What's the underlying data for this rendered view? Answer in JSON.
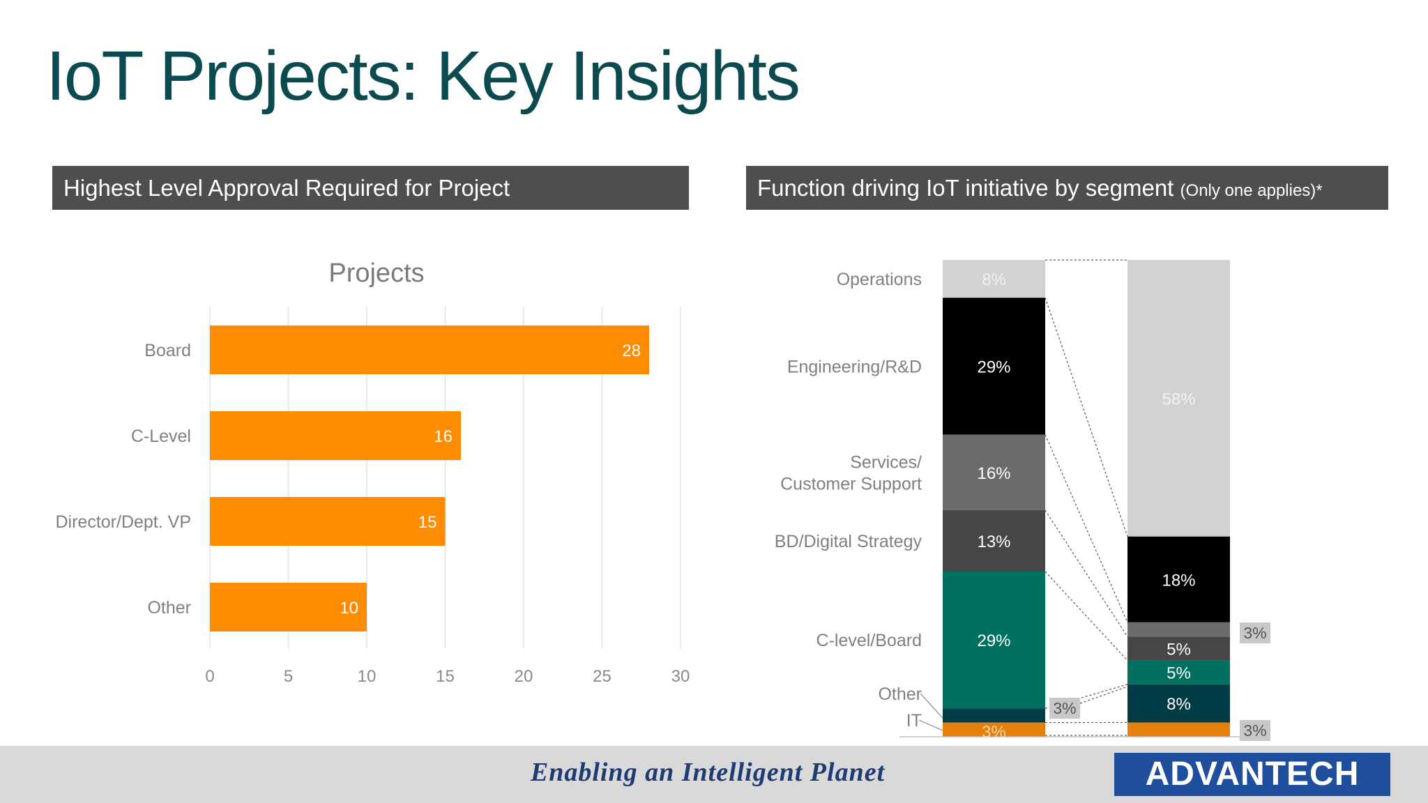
{
  "title": "IoT Projects: Key Insights",
  "left_panel": {
    "header": "Highest Level Approval Required for Project"
  },
  "right_panel": {
    "header": "Function driving IoT initiative by segment",
    "header_note": "(Only one applies)*"
  },
  "colors": {
    "title": "#0b4a4e",
    "header_bg": "#4f4d4f",
    "bar": "#ff8c00",
    "operations": "#d2d1d3",
    "engineering": "#000000",
    "services": "#6b6a6c",
    "bd_digital": "#464547",
    "c_level": "#007061",
    "other": "#003c46",
    "it": "#e57f0a",
    "footer_bg": "#d9d9d9",
    "logo_bg": "#1f4e9c"
  },
  "chart_data": [
    {
      "type": "bar",
      "orientation": "horizontal",
      "title": "Projects",
      "categories": [
        "Board",
        "C-Level",
        "Director/Dept. VP",
        "Other"
      ],
      "values": [
        28,
        16,
        15,
        10
      ],
      "xlim": [
        0,
        30
      ],
      "xticks": [
        0,
        5,
        10,
        15,
        20,
        25,
        30
      ],
      "grid": true
    },
    {
      "type": "bar",
      "stacked": true,
      "series": [
        {
          "name": "Operations",
          "values": [
            8,
            58
          ],
          "labels": [
            "8%",
            "58%"
          ]
        },
        {
          "name": "Engineering/R&D",
          "values": [
            29,
            18
          ],
          "labels": [
            "29%",
            "18%"
          ]
        },
        {
          "name": "Services/ Customer Support",
          "name_lines": [
            "Services/",
            "Customer Support"
          ],
          "values": [
            16,
            3
          ],
          "labels": [
            "16%",
            "3%"
          ]
        },
        {
          "name": "BD/Digital Strategy",
          "values": [
            13,
            5
          ],
          "labels": [
            "13%",
            "5%"
          ]
        },
        {
          "name": "C-level/Board",
          "values": [
            29,
            5
          ],
          "labels": [
            "29%",
            "5%"
          ]
        },
        {
          "name": "Other",
          "values": [
            3,
            8
          ],
          "labels": [
            "3%",
            "8%"
          ]
        },
        {
          "name": "IT",
          "values": [
            3,
            3
          ],
          "labels": [
            "3%",
            "3%"
          ]
        }
      ]
    }
  ],
  "footer": {
    "tagline": "Enabling an Intelligent Planet",
    "logo": "ADVANTECH"
  }
}
